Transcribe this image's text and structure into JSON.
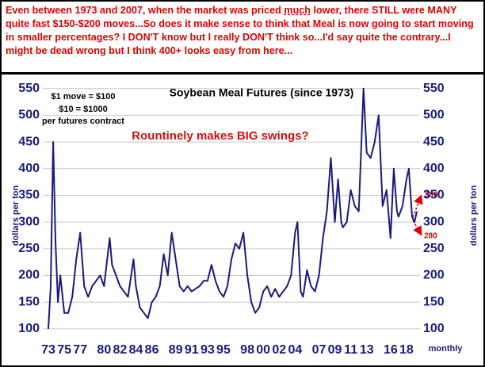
{
  "note": {
    "before": "Even between 1973 and 2007, when the market was priced ",
    "emphasis": "much",
    "after": " lower, there STILL were MANY quite fast $150-$200 moves...So does it make sense to think that Meal is now going to start moving in smaller percentages? I DON'T know but I really DON'T think so...I'd say quite the contrary...I might be dead wrong but I think 400+ looks easy from here..."
  },
  "chart_data": {
    "type": "line",
    "title": "Soybean Meal Futures (since 1973)",
    "y_label": "dollars per ton",
    "x_label": "monthly",
    "annotations": {
      "scale": [
        "$1 move = $100",
        "$10 = $1000",
        "per futures contract"
      ],
      "question": "Rountinely makes BIG swings?",
      "up": "360",
      "down": "280"
    },
    "xlim": [
      1972.3,
      2019.7
    ],
    "ylim": [
      85,
      560
    ],
    "xticks": [
      {
        "value": 1973,
        "label": "73"
      },
      {
        "value": 1975,
        "label": "75"
      },
      {
        "value": 1977,
        "label": "77"
      },
      {
        "value": 1980,
        "label": "80"
      },
      {
        "value": 1982,
        "label": "82"
      },
      {
        "value": 1984,
        "label": "84"
      },
      {
        "value": 1986,
        "label": "86"
      },
      {
        "value": 1989,
        "label": "89"
      },
      {
        "value": 1991,
        "label": "91"
      },
      {
        "value": 1993,
        "label": "93"
      },
      {
        "value": 1995,
        "label": "95"
      },
      {
        "value": 1998,
        "label": "98"
      },
      {
        "value": 2000,
        "label": "00"
      },
      {
        "value": 2002,
        "label": "02"
      },
      {
        "value": 2004,
        "label": "04"
      },
      {
        "value": 2007,
        "label": "07"
      },
      {
        "value": 2009,
        "label": "09"
      },
      {
        "value": 2011,
        "label": "11"
      },
      {
        "value": 2013,
        "label": "13"
      },
      {
        "value": 2016,
        "label": "16"
      },
      {
        "value": 2018,
        "label": "18"
      }
    ],
    "yticks": [
      100,
      150,
      200,
      250,
      300,
      350,
      400,
      450,
      500,
      550
    ],
    "grid": true,
    "series": [
      {
        "color": "#1a1a80",
        "x": [
          1973,
          1973.3,
          1973.6,
          1973.9,
          1974.2,
          1974.5,
          1975,
          1975.5,
          1976,
          1976.5,
          1977,
          1977.5,
          1978,
          1978.5,
          1979,
          1979.5,
          1980,
          1980.7,
          1981,
          1981.5,
          1982,
          1982.5,
          1983,
          1983.7,
          1984,
          1984.5,
          1985,
          1985.5,
          1986,
          1986.5,
          1987,
          1987.5,
          1988,
          1988.5,
          1989,
          1989.5,
          1990,
          1990.5,
          1991,
          1992,
          1992.5,
          1993,
          1993.5,
          1994,
          1994.5,
          1995,
          1995.5,
          1996,
          1996.5,
          1997,
          1997.5,
          1998,
          1998.5,
          1999,
          1999.5,
          2000,
          2000.5,
          2001,
          2001.5,
          2002,
          2002.5,
          2003,
          2003.5,
          2004,
          2004.3,
          2004.7,
          2005,
          2005.5,
          2006,
          2006.5,
          2007,
          2007.5,
          2008,
          2008.5,
          2009,
          2009.4,
          2009.8,
          2010,
          2010.5,
          2011,
          2011.5,
          2012,
          2012.6,
          2013,
          2013.5,
          2014,
          2014.5,
          2015,
          2015.5,
          2016,
          2016.4,
          2016.8,
          2017,
          2017.5,
          2018,
          2018.3,
          2018.7,
          2019,
          2019.3
        ],
        "values": [
          100,
          180,
          450,
          260,
          150,
          200,
          130,
          130,
          160,
          230,
          280,
          180,
          160,
          180,
          190,
          200,
          180,
          270,
          220,
          200,
          180,
          170,
          160,
          230,
          180,
          140,
          130,
          120,
          150,
          160,
          180,
          240,
          200,
          280,
          230,
          180,
          170,
          180,
          170,
          180,
          190,
          190,
          220,
          190,
          170,
          160,
          180,
          230,
          260,
          250,
          280,
          200,
          150,
          130,
          140,
          170,
          180,
          160,
          175,
          160,
          170,
          180,
          200,
          280,
          300,
          170,
          160,
          210,
          180,
          170,
          200,
          270,
          320,
          420,
          300,
          380,
          300,
          290,
          300,
          360,
          330,
          320,
          550,
          430,
          420,
          450,
          500,
          330,
          360,
          270,
          400,
          320,
          310,
          330,
          380,
          400,
          310,
          300,
          320
        ]
      }
    ]
  }
}
